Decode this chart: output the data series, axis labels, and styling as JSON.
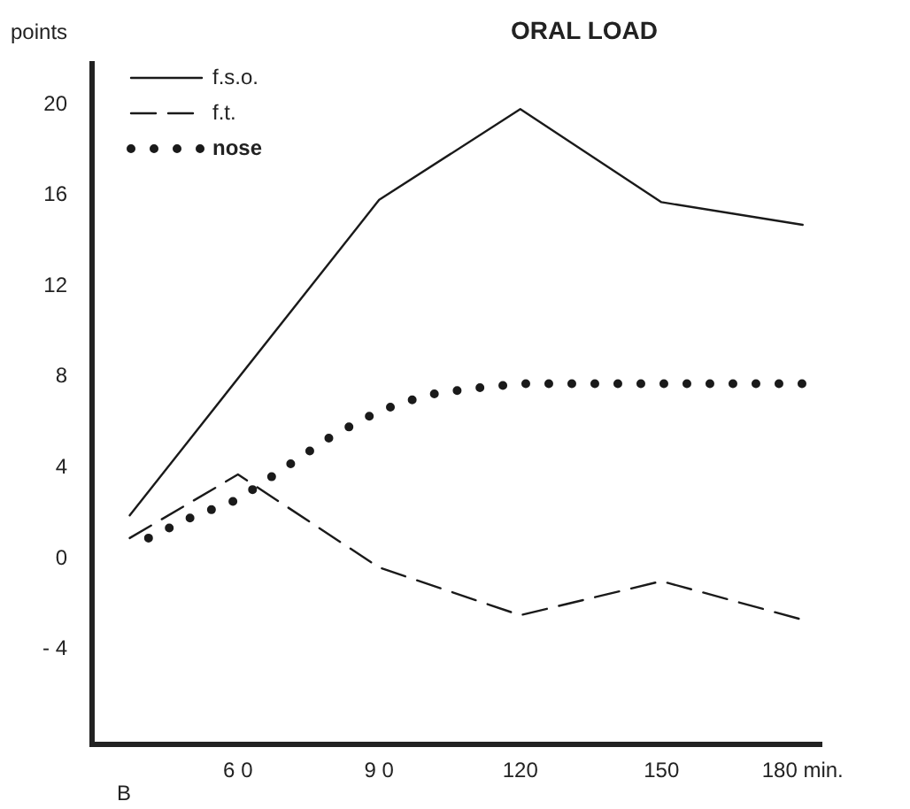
{
  "chart_data": {
    "type": "line",
    "title": "ORAL LOAD",
    "ylabel": "points",
    "annotations": [
      "B"
    ],
    "xlim": [
      29,
      184
    ],
    "xticks": [
      {
        "value": 60,
        "label": "6 0"
      },
      {
        "value": 90,
        "label": "9 0"
      },
      120,
      150,
      {
        "value": 180,
        "label": "180 min."
      }
    ],
    "ylim": [
      -8.2,
      21.8
    ],
    "yticks": [
      20,
      16,
      12,
      8,
      4,
      0,
      {
        "value": -4,
        "label": "- 4"
      }
    ],
    "grid": false,
    "legend": "top left",
    "marker": "none",
    "series": [
      {
        "name": "f.s.o.",
        "color": "#1a1a1a",
        "line_style": "solid",
        "x": [
          37,
          90,
          120,
          150,
          180
        ],
        "values": [
          1.9,
          15.8,
          19.8,
          15.7,
          14.7
        ]
      },
      {
        "name": "f.t.",
        "color": "#1a1a1a",
        "line_style": "dashed",
        "x": [
          37,
          60,
          90,
          120,
          150,
          180
        ],
        "values": [
          0.9,
          3.7,
          -0.4,
          -2.5,
          -1,
          -2.7
        ]
      },
      {
        "name": "nose",
        "color": "#1a1a1a",
        "line_style": "dotted",
        "x": [
          41,
          50,
          60,
          70,
          80,
          90,
          100,
          110,
          120,
          150,
          180
        ],
        "values": [
          0.9,
          1.8,
          2.6,
          4.0,
          5.4,
          6.5,
          7.2,
          7.5,
          7.7,
          7.7,
          7.7
        ]
      }
    ]
  }
}
